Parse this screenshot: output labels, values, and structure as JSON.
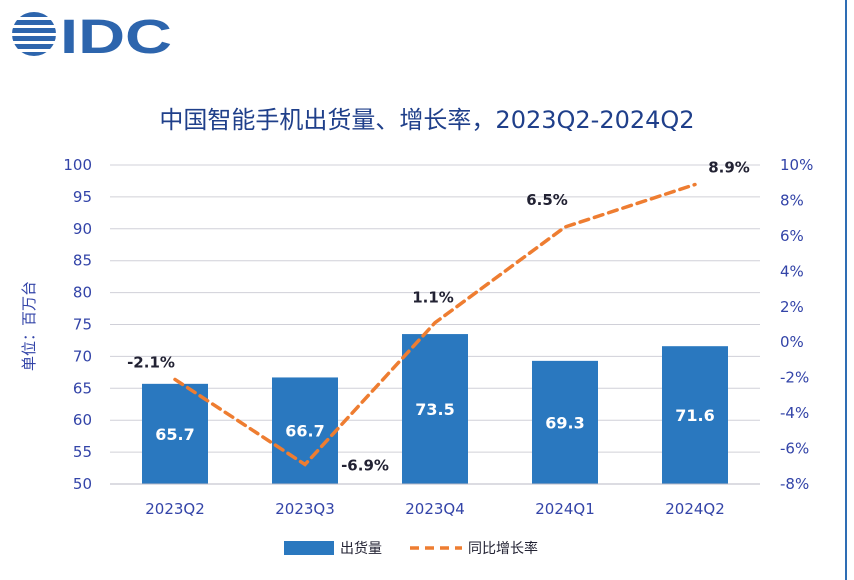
{
  "brand": {
    "logo_text": "IDC"
  },
  "chart_data": {
    "type": "bar+line",
    "title": "中国智能手机出货量、增长率，2023Q2-2024Q2",
    "ylabel": "单位：百万台",
    "categories": [
      "2023Q2",
      "2023Q3",
      "2023Q4",
      "2024Q1",
      "2024Q2"
    ],
    "series": [
      {
        "name": "出货量",
        "type": "bar",
        "axis": "left",
        "color": "#2a78bf",
        "values": [
          65.7,
          66.7,
          73.5,
          69.3,
          71.6
        ],
        "labels": [
          "65.7",
          "66.7",
          "73.5",
          "69.3",
          "71.6"
        ]
      },
      {
        "name": "同比增长率",
        "type": "line",
        "axis": "right",
        "color": "#ee7d31",
        "dashed": true,
        "values": [
          -2.1,
          -6.9,
          1.1,
          6.5,
          8.9
        ],
        "labels": [
          "-2.1%",
          "-6.9%",
          "1.1%",
          "6.5%",
          "8.9%"
        ]
      }
    ],
    "ylim_left": [
      50,
      100
    ],
    "yticks_left": [
      "50",
      "55",
      "60",
      "65",
      "70",
      "75",
      "80",
      "85",
      "90",
      "95",
      "100"
    ],
    "ylim_right": [
      -8,
      10
    ],
    "yticks_right": [
      "-8%",
      "-6%",
      "-4%",
      "-2%",
      "0%",
      "2%",
      "4%",
      "6%",
      "8%",
      "10%"
    ],
    "grid": true,
    "legend": "bottom-center"
  }
}
